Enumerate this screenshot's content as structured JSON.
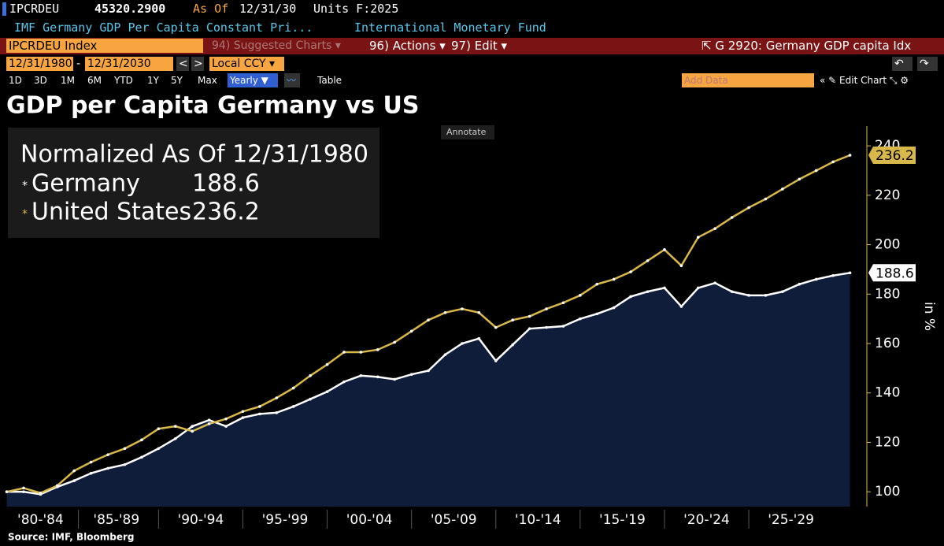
{
  "header": {
    "ticker": "IPCRDEU",
    "price": "45320.2900",
    "as_of_label": "As Of",
    "as_of_date": "12/31/30",
    "units": "Units F:2025",
    "description": "IMF Germany GDP Per Capita Constant Pri...",
    "source_name": "International Monetary Fund"
  },
  "toolbar": {
    "security": "IPCRDEU Index",
    "suggested": "94) Suggested Charts",
    "actions": "96) Actions",
    "edit": "97) Edit",
    "chart_name": "G 2920: Germany GDP capita Idx",
    "start_date": "12/31/1980",
    "date_sep": "-",
    "end_date": "12/31/2030",
    "currency": "Local CCY",
    "periods": [
      "1D",
      "3D",
      "1M",
      "6M",
      "YTD",
      "1Y",
      "5Y",
      "Max"
    ],
    "frequency": "Yearly",
    "table": "Table",
    "add_data": "Add Data",
    "edit_chart": "Edit Chart",
    "annotate": "Annotate"
  },
  "chart_data": {
    "type": "line",
    "title": "GDP per Capita Germany vs US",
    "legend_title": "Normalized As Of 12/31/1980",
    "ylabel": "in %",
    "source": "Source: IMF, Bloomberg",
    "x": [
      1980,
      1981,
      1982,
      1983,
      1984,
      1985,
      1986,
      1987,
      1988,
      1989,
      1990,
      1991,
      1992,
      1993,
      1994,
      1995,
      1996,
      1997,
      1998,
      1999,
      2000,
      2001,
      2002,
      2003,
      2004,
      2005,
      2006,
      2007,
      2008,
      2009,
      2010,
      2011,
      2012,
      2013,
      2014,
      2015,
      2016,
      2017,
      2018,
      2019,
      2020,
      2021,
      2022,
      2023,
      2024,
      2025,
      2026,
      2027,
      2028,
      2029,
      2030
    ],
    "series": [
      {
        "name": "Germany",
        "color": "#ffffff",
        "fill_color": "#0f1d3a",
        "values": [
          100,
          100,
          99,
          102,
          104.5,
          107.5,
          109.5,
          111,
          114,
          117.5,
          121.5,
          126.5,
          129,
          126.5,
          130,
          131.5,
          132,
          134.5,
          137.5,
          140.5,
          144.5,
          147,
          146.5,
          145.5,
          147.5,
          149,
          155.5,
          160,
          162,
          153,
          159.5,
          166,
          166.5,
          167,
          170,
          172,
          174.5,
          179,
          181,
          182.5,
          175,
          182.5,
          184.5,
          181,
          179.5,
          179.5,
          181,
          184,
          186,
          187.5,
          188.6
        ]
      },
      {
        "name": "United States",
        "color": "#d9b84a",
        "values": [
          100,
          101.5,
          99.5,
          102.5,
          108.5,
          112,
          115,
          117.5,
          121,
          125.5,
          126.5,
          124.5,
          127.5,
          129.5,
          132.5,
          134.5,
          138,
          142,
          147,
          151.5,
          156.5,
          156.5,
          157.5,
          160.5,
          165,
          169.5,
          172.5,
          174,
          172.5,
          166.5,
          169.5,
          171,
          174,
          176.5,
          179.5,
          184,
          186,
          189,
          193.5,
          198,
          191.5,
          203,
          206.5,
          211,
          215,
          218.5,
          222.5,
          226.5,
          230,
          233.5,
          236.2
        ]
      }
    ],
    "xlim": [
      1979.6,
      2031
    ],
    "xticks": [
      {
        "value": 1982,
        "label": "'80-'84"
      },
      {
        "value": 1986.5,
        "label": "'85-'89"
      },
      {
        "value": 1991.5,
        "label": "'90-'94"
      },
      {
        "value": 1996.5,
        "label": "'95-'99"
      },
      {
        "value": 2001.5,
        "label": "'00-'04"
      },
      {
        "value": 2006.5,
        "label": "'05-'09"
      },
      {
        "value": 2011.5,
        "label": "'10-'14"
      },
      {
        "value": 2016.5,
        "label": "'15-'19"
      },
      {
        "value": 2021.5,
        "label": "'20-'24"
      },
      {
        "value": 2026.5,
        "label": "'25-'29"
      }
    ],
    "ylim": [
      94,
      248
    ],
    "yticks": [
      100,
      120,
      140,
      160,
      180,
      200,
      220,
      240
    ]
  }
}
